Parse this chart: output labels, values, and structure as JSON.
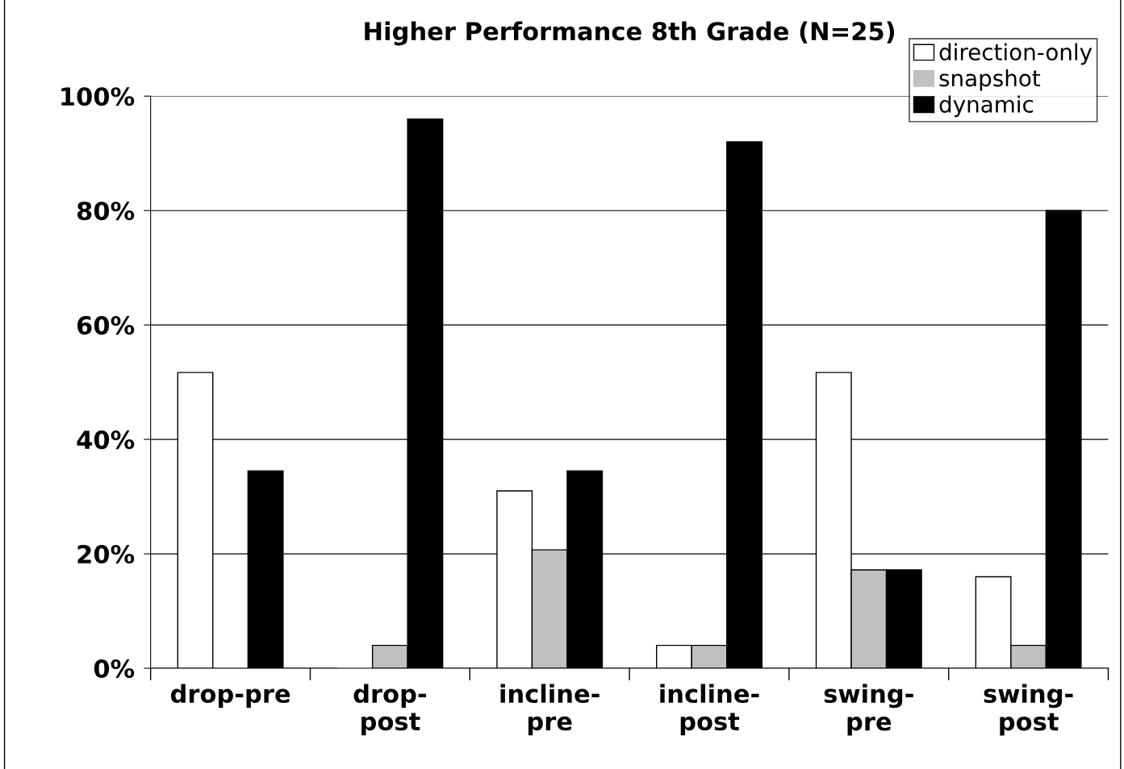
{
  "chart_data": {
    "type": "bar",
    "title": "Higher Performance 8th Grade (N=25)",
    "categories": [
      "drop-pre",
      "drop-\npost",
      "incline-\npre",
      "incline-\npost",
      "swing-\npre",
      "swing-\npost"
    ],
    "series": [
      {
        "name": "direction-only",
        "color": "#ffffff",
        "values": [
          51.7,
          0,
          31.0,
          4,
          51.7,
          16
        ]
      },
      {
        "name": "snapshot",
        "color": "#c0c0c0",
        "values": [
          0,
          4,
          20.7,
          4,
          17.2,
          4
        ]
      },
      {
        "name": "dynamic",
        "color": "#000000",
        "values": [
          34.5,
          96,
          34.5,
          92,
          17.2,
          80
        ]
      }
    ],
    "ylim": [
      0,
      100
    ],
    "yticks": [
      {
        "value": 0,
        "label": "0%"
      },
      {
        "value": 20,
        "label": "20%"
      },
      {
        "value": 40,
        "label": "40%"
      },
      {
        "value": 60,
        "label": "60%"
      },
      {
        "value": 80,
        "label": "80%"
      },
      {
        "value": 100,
        "label": "100%"
      }
    ],
    "grid": "y",
    "legend": "top right"
  }
}
